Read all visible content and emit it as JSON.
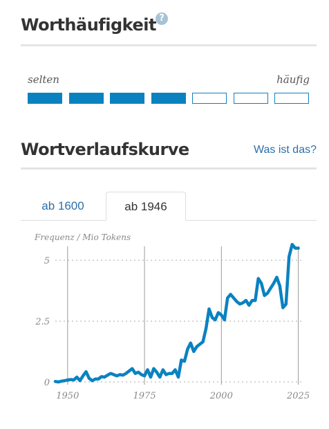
{
  "frequency_section": {
    "title": "Worthäufigkeit",
    "help_icon": "question-icon",
    "low_label": "selten",
    "high_label": "häufig",
    "level": 4,
    "max_level": 7,
    "accent_color": "#0a82c0"
  },
  "curve_section": {
    "title": "Wortverlaufskurve",
    "help_link": "Was ist das?",
    "tabs": [
      {
        "label": "ab 1600",
        "active": false
      },
      {
        "label": "ab 1946",
        "active": true
      }
    ]
  },
  "chart_data": {
    "type": "line",
    "ylabel": "Frequenz / Mio Tokens",
    "xlabel": "",
    "xlim": [
      1946,
      2026
    ],
    "ylim": [
      0,
      5.8
    ],
    "x_ticks": [
      {
        "value": 1950,
        "label": "1950"
      },
      {
        "value": 1975,
        "label": "1975"
      },
      {
        "value": 2000,
        "label": "2000"
      },
      {
        "value": 2025,
        "label": "2025"
      }
    ],
    "y_ticks": [
      {
        "value": 0,
        "label": "0"
      },
      {
        "value": 2.5,
        "label": "2.5"
      },
      {
        "value": 5,
        "label": "5"
      }
    ],
    "color": "#0a82c0",
    "x": [
      1946,
      1947,
      1948,
      1949,
      1950,
      1951,
      1952,
      1953,
      1954,
      1955,
      1956,
      1957,
      1958,
      1959,
      1960,
      1961,
      1962,
      1963,
      1964,
      1965,
      1966,
      1967,
      1968,
      1969,
      1970,
      1971,
      1972,
      1973,
      1974,
      1975,
      1976,
      1977,
      1978,
      1979,
      1980,
      1981,
      1982,
      1983,
      1984,
      1985,
      1986,
      1987,
      1988,
      1989,
      1990,
      1991,
      1992,
      1993,
      1994,
      1995,
      1996,
      1997,
      1998,
      1999,
      2000,
      2001,
      2002,
      2003,
      2004,
      2005,
      2006,
      2007,
      2008,
      2009,
      2010,
      2011,
      2012,
      2013,
      2014,
      2015,
      2016,
      2017,
      2018,
      2019,
      2020,
      2021,
      2022,
      2023,
      2024,
      2025
    ],
    "values": [
      0.02,
      0.0,
      0.03,
      0.05,
      0.08,
      0.1,
      0.08,
      0.2,
      0.05,
      0.25,
      0.42,
      0.15,
      0.05,
      0.12,
      0.12,
      0.22,
      0.2,
      0.28,
      0.35,
      0.3,
      0.25,
      0.3,
      0.28,
      0.35,
      0.45,
      0.55,
      0.35,
      0.4,
      0.3,
      0.25,
      0.5,
      0.2,
      0.55,
      0.4,
      0.2,
      0.5,
      0.3,
      0.35,
      0.35,
      0.5,
      0.2,
      0.9,
      0.85,
      1.35,
      1.6,
      1.25,
      1.45,
      1.55,
      1.65,
      2.2,
      3.0,
      2.65,
      2.55,
      2.85,
      2.75,
      2.55,
      3.45,
      3.6,
      3.45,
      3.3,
      3.2,
      3.25,
      3.35,
      3.15,
      3.35,
      3.35,
      4.25,
      4.05,
      3.55,
      3.65,
      3.85,
      4.05,
      4.3,
      3.95,
      3.05,
      3.2,
      5.15,
      5.65,
      5.5,
      5.5
    ]
  }
}
